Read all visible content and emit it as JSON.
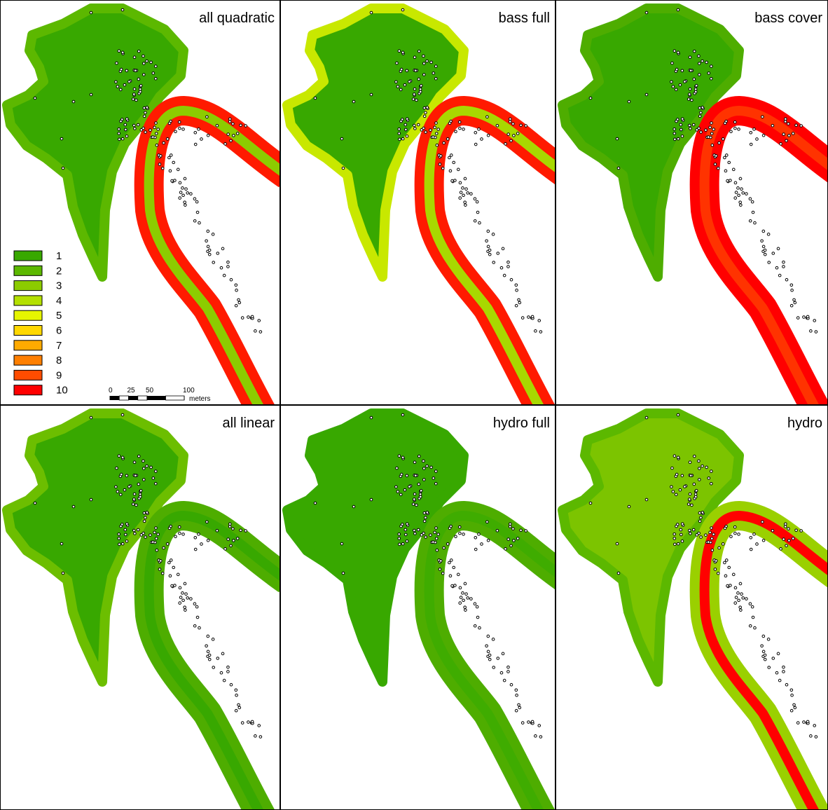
{
  "panels": [
    {
      "title": "all quadratic",
      "lake_color": "#38a800",
      "edge_color": "#5cb800",
      "river_color": "#ff1a00",
      "river_core_color": "#8ccc00"
    },
    {
      "title": "bass full",
      "lake_color": "#38a800",
      "edge_color": "#c8e800",
      "river_color": "#ff1a00",
      "river_core_color": "#a8d800"
    },
    {
      "title": "bass cover",
      "lake_color": "#38a800",
      "edge_color": "#4ead00",
      "river_color": "#ff0000",
      "river_core_color": "#ff3300"
    },
    {
      "title": "all linear",
      "lake_color": "#38a800",
      "edge_color": "#6cbe00",
      "river_color": "#4ead00",
      "river_core_color": "#38a800"
    },
    {
      "title": "hydro full",
      "lake_color": "#38a800",
      "edge_color": "#38a800",
      "river_color": "#4ead00",
      "river_core_color": "#3fac00"
    },
    {
      "title": "hydro",
      "lake_color": "#7cc400",
      "edge_color": "#5cb800",
      "river_color": "#9ad000",
      "river_core_color": "#ff0000"
    }
  ],
  "legend": [
    {
      "label": "1",
      "color": "#38a800"
    },
    {
      "label": "2",
      "color": "#5cb800"
    },
    {
      "label": "3",
      "color": "#8ccc00"
    },
    {
      "label": "4",
      "color": "#b4e000"
    },
    {
      "label": "5",
      "color": "#e6f500"
    },
    {
      "label": "6",
      "color": "#ffd800"
    },
    {
      "label": "7",
      "color": "#ffaa00"
    },
    {
      "label": "8",
      "color": "#ff7f00"
    },
    {
      "label": "9",
      "color": "#ff4c00"
    },
    {
      "label": "10",
      "color": "#ff0000"
    }
  ],
  "scale": {
    "ticks": [
      0,
      25,
      50,
      100
    ],
    "unit": "meters"
  }
}
